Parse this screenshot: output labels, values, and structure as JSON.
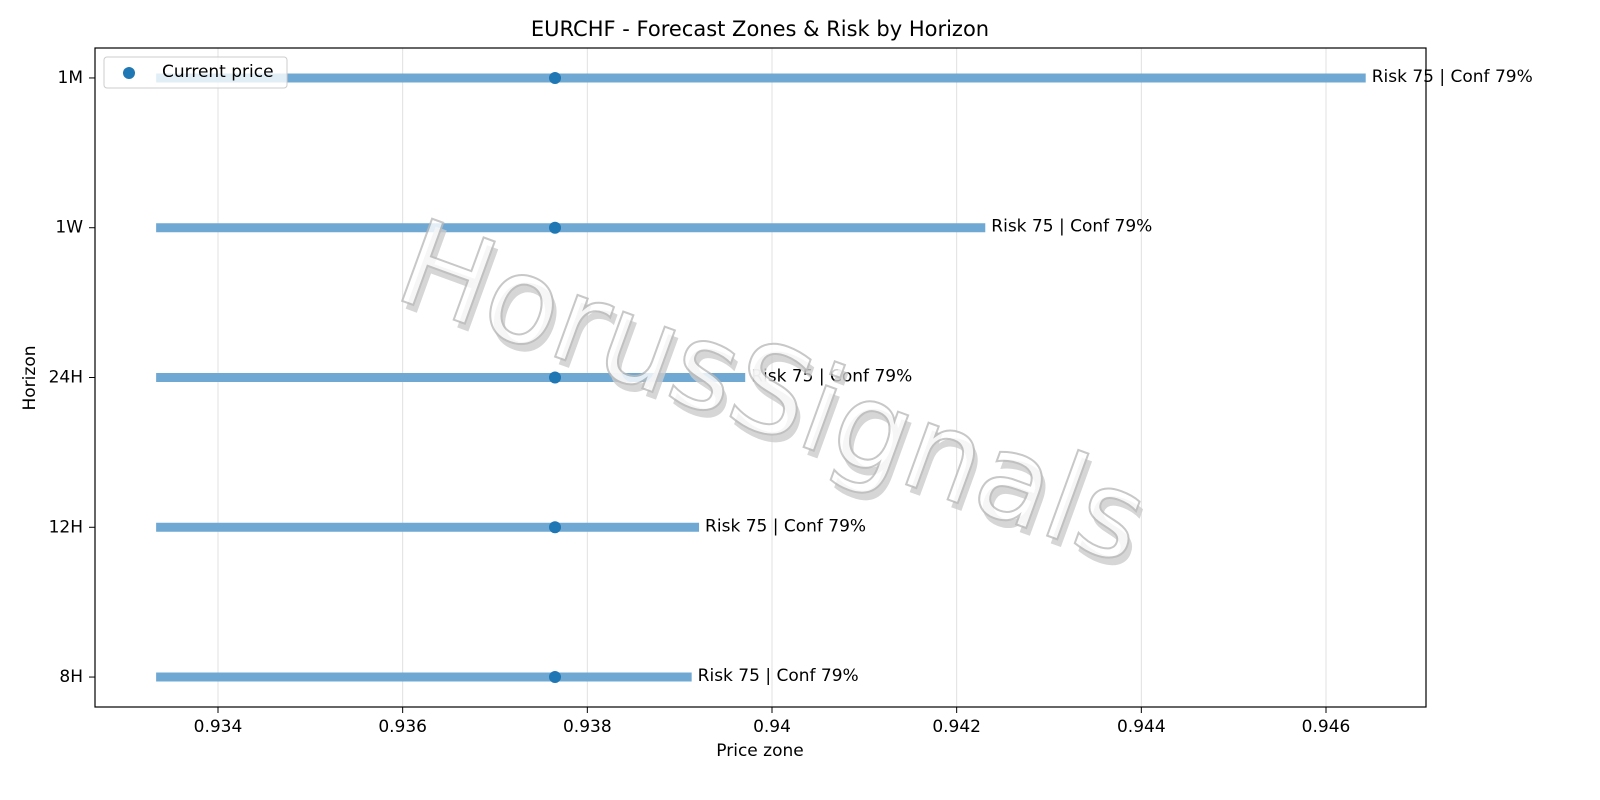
{
  "chart_data": {
    "type": "range",
    "title": "EURCHF - Forecast Zones & Risk by Horizon",
    "xlabel": "Price zone",
    "ylabel": "Horizon",
    "categories": [
      "1M",
      "1W",
      "24H",
      "12H",
      "8H"
    ],
    "low": [
      0.93333,
      0.93333,
      0.93333,
      0.93333,
      0.93333
    ],
    "high": [
      0.94643,
      0.94231,
      0.93971,
      0.93921,
      0.93913
    ],
    "range_color": "#6fa8d3",
    "current": {
      "name": "Current price",
      "color": "#1f77b4",
      "values": [
        0.93765,
        0.93765,
        0.93765,
        0.93765,
        0.93765
      ]
    },
    "annotations": [
      "Risk 75 | Conf 79%",
      "Risk 75 | Conf 79%",
      "Risk 75 | Conf 79%",
      "Risk 75 | Conf 79%",
      "Risk 75 | Conf 79%"
    ],
    "xlim": [
      0.932668,
      0.947083
    ],
    "xticks": [
      0.934,
      0.936,
      0.938,
      0.94,
      0.942,
      0.944,
      0.946
    ],
    "grid": true,
    "legend": "upper left",
    "watermark": "HorusSignals"
  }
}
